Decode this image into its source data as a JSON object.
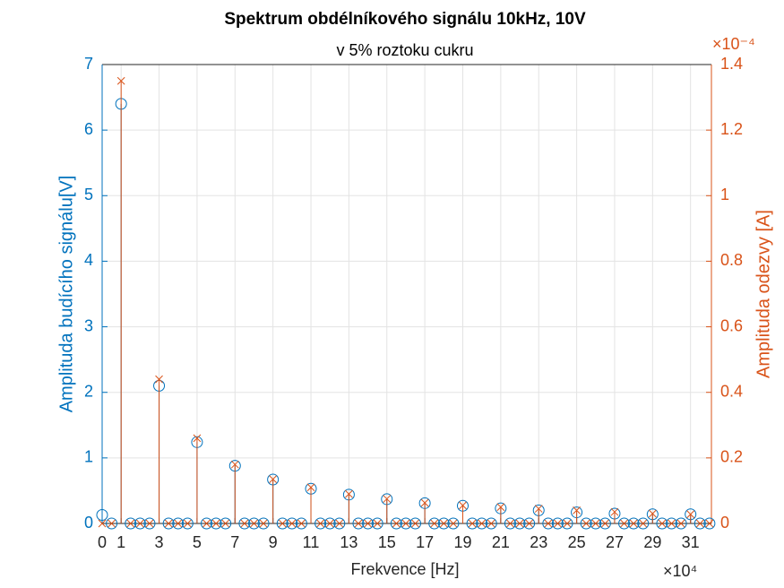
{
  "chart_data": {
    "type": "stem",
    "title": "Spektrum obdélníkového signálu 10kHz, 10V",
    "subtitle": "v 5% roztoku cukru",
    "x_label": "Frekvence [Hz]",
    "x_exponent": "×10⁴",
    "y_label": "Amplituda budícího signálu[V]",
    "y2_label": "Amplituda odezvy [A]",
    "y2_exponent": "×10⁻⁴",
    "x": [
      0,
      0.5,
      1,
      1.5,
      2,
      2.5,
      3,
      3.5,
      4,
      4.5,
      5,
      5.5,
      6,
      6.5,
      7,
      7.5,
      8,
      8.5,
      9,
      9.5,
      10,
      10.5,
      11,
      11.5,
      12,
      12.5,
      13,
      13.5,
      14,
      14.5,
      15,
      15.5,
      16,
      16.5,
      17,
      17.5,
      18,
      18.5,
      19,
      19.5,
      20,
      20.5,
      21,
      21.5,
      22,
      22.5,
      23,
      23.5,
      24,
      24.5,
      25,
      25.5,
      26,
      26.5,
      27,
      27.5,
      28,
      28.5,
      29,
      29.5,
      30,
      30.5,
      31,
      31.5,
      32
    ],
    "series": [
      {
        "color": "#0072BD",
        "marker": "circle",
        "values": [
          0.13,
          0,
          6.4,
          0,
          0,
          0,
          2.1,
          0,
          0,
          0,
          1.24,
          0,
          0,
          0,
          0.88,
          0,
          0,
          0,
          0.67,
          0,
          0,
          0,
          0.53,
          0,
          0,
          0,
          0.44,
          0,
          0,
          0,
          0.37,
          0,
          0,
          0,
          0.31,
          0,
          0,
          0,
          0.27,
          0,
          0,
          0,
          0.23,
          0,
          0,
          0,
          0.2,
          0,
          0,
          0,
          0.17,
          0,
          0,
          0,
          0.15,
          0,
          0,
          0,
          0.14,
          0,
          0,
          0,
          0.14,
          0,
          0
        ]
      },
      {
        "color": "#D95319",
        "marker": "cross",
        "axis": "y2",
        "values": [
          0,
          0,
          1.35,
          0,
          0,
          0,
          0.44,
          0,
          0,
          0,
          0.26,
          0,
          0,
          0,
          0.18,
          0,
          0,
          0,
          0.135,
          0,
          0,
          0,
          0.11,
          0,
          0,
          0,
          0.09,
          0,
          0,
          0,
          0.075,
          0,
          0,
          0,
          0.063,
          0,
          0,
          0,
          0.055,
          0,
          0,
          0,
          0.05,
          0,
          0,
          0,
          0.045,
          0,
          0,
          0,
          0.04,
          0,
          0,
          0,
          0.035,
          0,
          0,
          0,
          0.03,
          0,
          0,
          0,
          0.028,
          0,
          0
        ]
      }
    ],
    "xlim": [
      0,
      32.1
    ],
    "xticks": [
      0,
      1,
      3,
      5,
      7,
      9,
      11,
      13,
      15,
      17,
      19,
      21,
      23,
      25,
      27,
      29,
      31
    ],
    "ylim": [
      0,
      7
    ],
    "yticks": [
      0,
      1,
      2,
      3,
      4,
      5,
      6,
      7
    ],
    "y2lim": [
      0,
      1.4
    ],
    "y2ticks": [
      0,
      0.2,
      0.4,
      0.6,
      0.8,
      1,
      1.2,
      1.4
    ],
    "grid": true
  }
}
